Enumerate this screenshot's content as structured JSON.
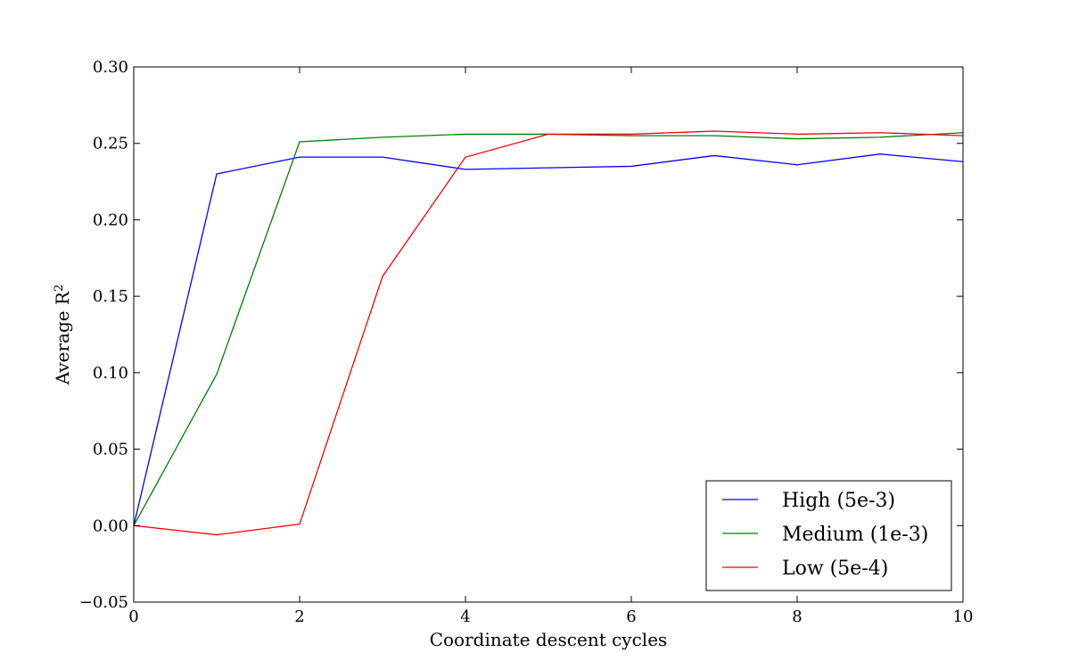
{
  "chart_data": {
    "type": "line",
    "title": "",
    "xlabel": "Coordinate descent cycles",
    "ylabel": "Average R",
    "ylabel_superscript": "2",
    "xlim": [
      0,
      10
    ],
    "ylim": [
      -0.05,
      0.3
    ],
    "x_ticks": [
      0,
      2,
      4,
      6,
      8,
      10
    ],
    "y_ticks": [
      -0.05,
      0.0,
      0.05,
      0.1,
      0.15,
      0.2,
      0.25,
      0.3
    ],
    "y_tick_labels": [
      "−0.05",
      "0.00",
      "0.05",
      "0.10",
      "0.15",
      "0.20",
      "0.25",
      "0.30"
    ],
    "grid": false,
    "legend_position": "bottom-right",
    "x": [
      0,
      1,
      2,
      3,
      4,
      5,
      6,
      7,
      8,
      9,
      10
    ],
    "series": [
      {
        "name": "High (5e-3)",
        "color": "#0000ff",
        "values": [
          0.0,
          0.23,
          0.241,
          0.241,
          0.233,
          0.234,
          0.235,
          0.242,
          0.236,
          0.243,
          0.238
        ]
      },
      {
        "name": "Medium (1e-3)",
        "color": "#008000",
        "values": [
          0.0,
          0.099,
          0.251,
          0.254,
          0.256,
          0.256,
          0.255,
          0.255,
          0.253,
          0.254,
          0.257
        ]
      },
      {
        "name": "Low (5e-4)",
        "color": "#ff0000",
        "values": [
          0.0,
          -0.006,
          0.001,
          0.163,
          0.241,
          0.256,
          0.256,
          0.258,
          0.256,
          0.257,
          0.255
        ]
      }
    ]
  }
}
